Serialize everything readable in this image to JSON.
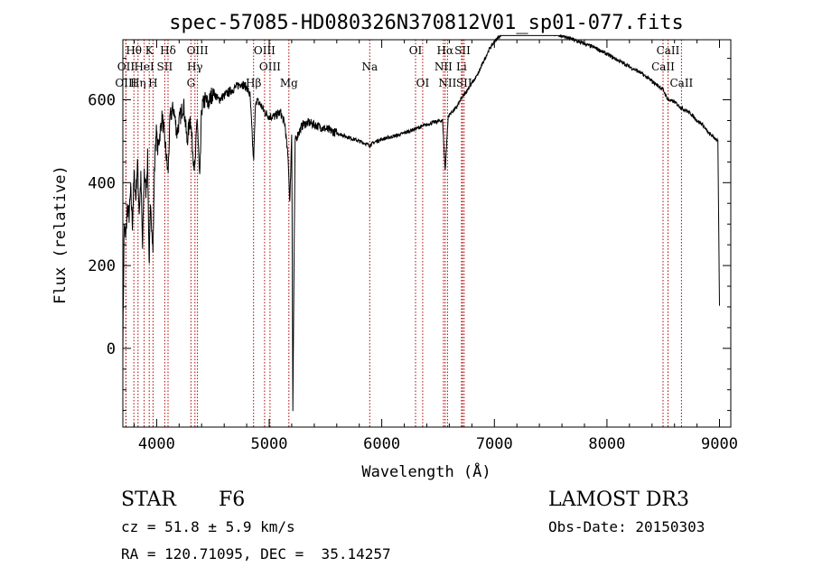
{
  "chart_data": {
    "type": "line",
    "title": "spec-57085-HD080326N370812V01_sp01-077.fits",
    "xlabel": "Wavelength (Å)",
    "ylabel": "Flux (relative)",
    "xlim": [
      3700,
      9100
    ],
    "ylim": [
      -190,
      745
    ],
    "x_ticks": [
      4000,
      5000,
      6000,
      7000,
      8000,
      9000
    ],
    "y_ticks": [
      0,
      200,
      400,
      600
    ],
    "grid": false,
    "series": [
      {
        "name": "flux",
        "x": [
          3700,
          3712,
          3725,
          3740,
          3755,
          3770,
          3785,
          3800,
          3815,
          3830,
          3845,
          3860,
          3875,
          3890,
          3905,
          3920,
          3933,
          3945,
          3960,
          3968,
          3980,
          3995,
          4010,
          4030,
          4050,
          4070,
          4101,
          4120,
          4150,
          4180,
          4210,
          4240,
          4270,
          4300,
          4320,
          4340,
          4360,
          4383,
          4400,
          4430,
          4460,
          4500,
          4550,
          4600,
          4650,
          4700,
          4750,
          4800,
          4830,
          4861,
          4880,
          4920,
          4960,
          5000,
          5050,
          5100,
          5140,
          5170,
          5183,
          5200,
          5210,
          5230,
          5260,
          5300,
          5350,
          5400,
          5450,
          5500,
          5550,
          5600,
          5650,
          5700,
          5750,
          5800,
          5850,
          5893,
          5950,
          6000,
          6050,
          6100,
          6150,
          6200,
          6250,
          6300,
          6350,
          6400,
          6450,
          6500,
          6540,
          6563,
          6590,
          6620,
          6660,
          6700,
          6750,
          6800,
          6850,
          6900,
          6950,
          7000,
          7050,
          7100,
          7150,
          7200,
          7300,
          7400,
          7500,
          7600,
          7700,
          7800,
          7900,
          8000,
          8100,
          8200,
          8300,
          8400,
          8498,
          8542,
          8600,
          8662,
          8700,
          8750,
          8800,
          8850,
          8900,
          8950,
          8985,
          9000
        ],
        "values": [
          0,
          300,
          260,
          340,
          320,
          380,
          300,
          420,
          360,
          450,
          330,
          410,
          240,
          430,
          380,
          460,
          200,
          330,
          290,
          240,
          420,
          530,
          480,
          520,
          560,
          510,
          420,
          560,
          580,
          520,
          560,
          590,
          500,
          560,
          480,
          430,
          560,
          400,
          580,
          600,
          590,
          620,
          600,
          610,
          620,
          630,
          640,
          630,
          610,
          450,
          600,
          590,
          570,
          560,
          560,
          570,
          540,
          450,
          350,
          520,
          -150,
          500,
          520,
          540,
          545,
          540,
          535,
          530,
          525,
          520,
          515,
          510,
          505,
          500,
          495,
          490,
          500,
          505,
          508,
          512,
          515,
          520,
          525,
          530,
          535,
          540,
          545,
          548,
          550,
          430,
          560,
          570,
          580,
          600,
          620,
          640,
          660,
          690,
          720,
          740,
          755,
          762,
          765,
          770,
          768,
          765,
          760,
          755,
          745,
          735,
          725,
          710,
          695,
          680,
          665,
          645,
          625,
          600,
          595,
          580,
          575,
          565,
          550,
          540,
          520,
          510,
          500,
          100
        ]
      }
    ],
    "spectral_lines": [
      {
        "label": "Hθ",
        "x": 3798,
        "row": 0
      },
      {
        "label": "K",
        "x": 3934,
        "row": 0
      },
      {
        "label": "Hδ",
        "x": 4101,
        "row": 0
      },
      {
        "label": "OIII",
        "x": 4363,
        "row": 0
      },
      {
        "label": "OIII",
        "x": 4959,
        "row": 0
      },
      {
        "label": "OI",
        "x": 6300,
        "row": 0
      },
      {
        "label": "Hα",
        "x": 6563,
        "row": 0
      },
      {
        "label": "SII",
        "x": 6717,
        "row": 0
      },
      {
        "label": "CaII",
        "x": 8542,
        "row": 0
      },
      {
        "label": "OII",
        "x": 3727,
        "row": 1
      },
      {
        "label": "HeI",
        "x": 3889,
        "row": 1
      },
      {
        "label": "SII",
        "x": 4072,
        "row": 1
      },
      {
        "label": "Hγ",
        "x": 4340,
        "row": 1
      },
      {
        "label": "OIII",
        "x": 5007,
        "row": 1
      },
      {
        "label": "Na",
        "x": 5893,
        "row": 1
      },
      {
        "label": "NII",
        "x": 6548,
        "row": 1
      },
      {
        "label": "Li",
        "x": 6708,
        "row": 1
      },
      {
        "label": "CaII",
        "x": 8498,
        "row": 1
      },
      {
        "label": "OIII",
        "x": 3727,
        "row": 2
      },
      {
        "label": "Hη",
        "x": 3835,
        "row": 2
      },
      {
        "label": "H",
        "x": 3968,
        "row": 2
      },
      {
        "label": "G",
        "x": 4305,
        "row": 2
      },
      {
        "label": "Hβ",
        "x": 4861,
        "row": 2
      },
      {
        "label": "Mg",
        "x": 5175,
        "row": 2
      },
      {
        "label": "OI",
        "x": 6363,
        "row": 2
      },
      {
        "label": "NII",
        "x": 6584,
        "row": 2
      },
      {
        "label": "SII",
        "x": 6731,
        "row": 2
      },
      {
        "label": "CaII",
        "x": 8662,
        "row": 2
      }
    ]
  },
  "info": {
    "object_class": "STAR",
    "subclass": "F6",
    "survey": "LAMOST DR3",
    "redshift": "cz = 51.8 ± 5.9 km/s",
    "obs_date": "Obs-Date: 20150303",
    "coords": "RA = 120.71095, DEC =  35.14257"
  },
  "colors": {
    "spectrum": "#000000",
    "line_markers": "#b00000",
    "axes": "#000000",
    "background": "#ffffff"
  }
}
